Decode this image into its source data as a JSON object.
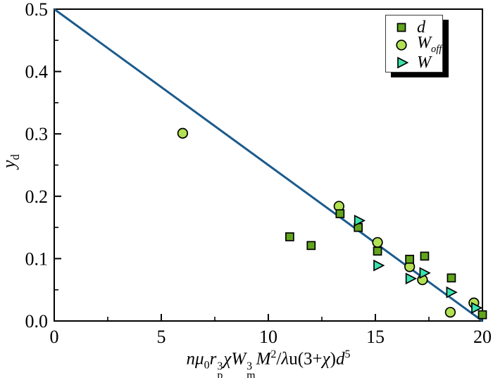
{
  "figure": {
    "background": "#ffffff"
  },
  "chart_data": {
    "type": "scatter",
    "title": "",
    "xlabel_plain": "nμ0rp3χWm3M2/λu(3+χ)d5",
    "xlabel_tokens": [
      {
        "t": "n",
        "s": "i"
      },
      {
        "t": "μ",
        "s": "i"
      },
      {
        "t": "0",
        "s": "sub"
      },
      {
        "t": "r",
        "s": "i"
      },
      {
        "s": "stack",
        "sup": "3",
        "sub": "p"
      },
      {
        "t": "χ",
        "s": "i"
      },
      {
        "t": "W",
        "s": "i"
      },
      {
        "s": "stack",
        "sup": "3",
        "sub": "m"
      },
      {
        "t": "M",
        "s": "i"
      },
      {
        "t": "2",
        "s": "sup"
      },
      {
        "t": "/",
        "s": "n"
      },
      {
        "t": "λ",
        "s": "i"
      },
      {
        "t": "u",
        "s": "n"
      },
      {
        "t": "(3+",
        "s": "n"
      },
      {
        "t": "χ",
        "s": "i"
      },
      {
        "t": ")",
        "s": "n"
      },
      {
        "t": "d",
        "s": "i"
      },
      {
        "t": "5",
        "s": "sup"
      }
    ],
    "ylabel_plain": "yd",
    "ylabel_tokens": [
      {
        "t": "y",
        "s": "i"
      },
      {
        "t": "d",
        "s": "sub"
      }
    ],
    "xlim": [
      0,
      20
    ],
    "ylim": [
      0,
      0.5
    ],
    "grid": false,
    "x_major_ticks": [
      0,
      5,
      10,
      15,
      20
    ],
    "x_tick_labels": [
      "0",
      "5",
      "10",
      "15",
      "20"
    ],
    "x_minor_ticks": [
      2.5,
      7.5,
      12.5,
      17.5
    ],
    "y_major_ticks": [
      0.5,
      0.4,
      0.3,
      0.2,
      0.1,
      0
    ],
    "y_tick_labels": [
      "0.5",
      "0.4",
      "0.3",
      "0.2",
      "0.1",
      "0.0"
    ],
    "y_minor_ticks": [
      0.45,
      0.35,
      0.25,
      0.15,
      0.05
    ],
    "series": [
      {
        "name": "d",
        "marker": "square",
        "fill": "#61a51d",
        "points": [
          [
            11.0,
            0.135
          ],
          [
            12.0,
            0.121
          ],
          [
            13.35,
            0.172
          ],
          [
            14.2,
            0.15
          ],
          [
            15.1,
            0.112
          ],
          [
            16.6,
            0.099
          ],
          [
            17.3,
            0.104
          ],
          [
            18.55,
            0.069
          ],
          [
            20.0,
            0.01
          ]
        ]
      },
      {
        "name": "W_off",
        "marker": "circle",
        "fill": "#b2e153",
        "points": [
          [
            6.0,
            0.301
          ],
          [
            13.3,
            0.184
          ],
          [
            15.1,
            0.126
          ],
          [
            16.6,
            0.087
          ],
          [
            17.2,
            0.066
          ],
          [
            18.5,
            0.014
          ],
          [
            19.6,
            0.029
          ]
        ]
      },
      {
        "name": "W",
        "marker": "triangle-right",
        "fill": "#38e3ae",
        "points": [
          [
            14.2,
            0.161
          ],
          [
            15.1,
            0.089
          ],
          [
            16.6,
            0.068
          ],
          [
            17.25,
            0.077
          ],
          [
            18.5,
            0.046
          ],
          [
            19.67,
            0.021
          ]
        ]
      }
    ],
    "fit_line": {
      "x1": 0,
      "y1": 0.5,
      "x2": 20,
      "y2": 0,
      "color": "#1b5b8d"
    },
    "draw_order": [
      1,
      0,
      2
    ],
    "legend_position": "top-right",
    "legend": {
      "entries": [
        {
          "key": "d",
          "marker": "square",
          "label": "d",
          "sub": ""
        },
        {
          "key": "w-off",
          "marker": "circle",
          "label": "W",
          "sub": "off"
        },
        {
          "key": "w",
          "marker": "triangle-right",
          "label": "W",
          "sub": ""
        }
      ]
    },
    "colors": {
      "frame": "#000000",
      "tick_label": "#000000",
      "marker_stroke": "#000000",
      "line": "#1b5b8d",
      "legend_bg": "#ffffff",
      "legend_border": "#3a3a3a",
      "legend_shadow": "#000000"
    }
  }
}
